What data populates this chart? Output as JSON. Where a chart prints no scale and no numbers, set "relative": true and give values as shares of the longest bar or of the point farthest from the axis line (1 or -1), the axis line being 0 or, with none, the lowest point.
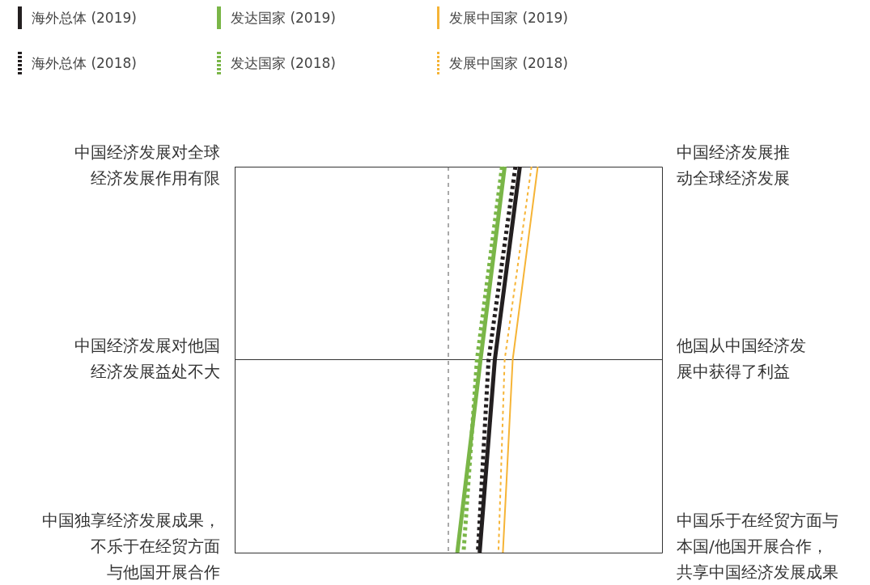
{
  "chart_data": {
    "type": "line",
    "relative": true,
    "orientation": "horizontal",
    "categories": [
      "中国经济发展对全球经济发展作用有限",
      "中国经济发展对他国经济发展益处不大",
      "中国独享经济发展成果，不乐于在经贸方面与他国开展合作"
    ],
    "y2_categories": [
      "中国经济发展推动全球经济发展",
      "他国从中国经济发展中获得了利益",
      "中国乐于在经贸方面与本国/他国开展合作，共享中国经济发展成果"
    ],
    "series": [
      {
        "name": "海外总体 (2019)",
        "color": "#231f20",
        "line_style": "solid",
        "values": [
          0.8,
          0.52,
          0.35
        ]
      },
      {
        "name": "发达国家 (2019)",
        "color": "#7ab648",
        "line_style": "solid",
        "values": [
          0.63,
          0.36,
          0.1
        ]
      },
      {
        "name": "发展中国家 (2019)",
        "color": "#f6b436",
        "line_style": "solid",
        "values": [
          1.0,
          0.72,
          0.61
        ]
      },
      {
        "name": "海外总体 (2018)",
        "color": "#231f20",
        "line_style": "dotted",
        "values": [
          0.75,
          0.45,
          0.33
        ]
      },
      {
        "name": "发达国家 (2018)",
        "color": "#7ab648",
        "line_style": "dotted",
        "values": [
          0.6,
          0.32,
          0.17
        ]
      },
      {
        "name": "发展中国家 (2018)",
        "color": "#f6b436",
        "line_style": "dotted",
        "values": [
          0.93,
          0.63,
          0.56
        ]
      }
    ],
    "ref_lines": [
      {
        "axis": "x",
        "value": 0,
        "color": "#555555",
        "line_style": "dashed"
      }
    ],
    "grid": "y",
    "legend": "top left",
    "marker": "none"
  }
}
